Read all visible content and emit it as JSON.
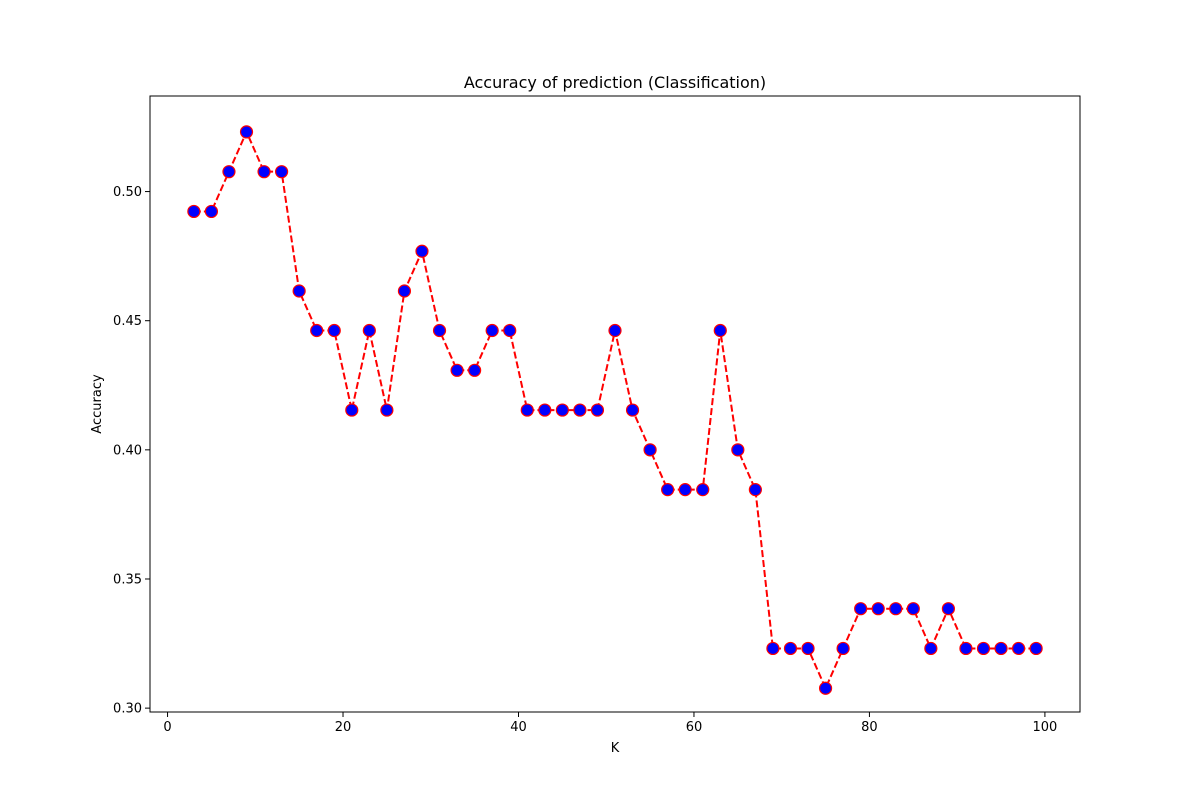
{
  "chart_data": {
    "type": "line",
    "title": "Accuracy of prediction (Classification)",
    "xlabel": "K",
    "ylabel": "Accuracy",
    "xlim": [
      -2,
      104
    ],
    "ylim": [
      0.2985,
      0.537
    ],
    "xticks": [
      0,
      20,
      40,
      60,
      80,
      100
    ],
    "yticks": [
      0.3,
      0.35,
      0.4,
      0.45,
      0.5
    ],
    "xtick_labels": [
      "0",
      "20",
      "40",
      "60",
      "80",
      "100"
    ],
    "ytick_labels": [
      "0.30",
      "0.35",
      "0.40",
      "0.45",
      "0.50"
    ],
    "grid": false,
    "line_color": "#ff0000",
    "line_style": "dashed",
    "marker_fill": "#0000ff",
    "marker_edge": "#ff0000",
    "series": [
      {
        "x": [
          3,
          5,
          7,
          9,
          11,
          13,
          15,
          17,
          19,
          21,
          23,
          25,
          27,
          29,
          31,
          33,
          35,
          37,
          39,
          41,
          43,
          45,
          47,
          49,
          51,
          53,
          55,
          57,
          59,
          61,
          63,
          65,
          67,
          69,
          71,
          73,
          75,
          77,
          79,
          81,
          83,
          85,
          87,
          89,
          91,
          93,
          95,
          97,
          99
        ],
        "values": [
          0.4923,
          0.4923,
          0.5077,
          0.5231,
          0.5077,
          0.5077,
          0.4615,
          0.4462,
          0.4462,
          0.4154,
          0.4462,
          0.4154,
          0.4615,
          0.4769,
          0.4462,
          0.4308,
          0.4308,
          0.4462,
          0.4462,
          0.4154,
          0.4154,
          0.4154,
          0.4154,
          0.4154,
          0.4462,
          0.4154,
          0.4,
          0.3846,
          0.3846,
          0.3846,
          0.4462,
          0.4,
          0.3846,
          0.3231,
          0.3231,
          0.3231,
          0.3077,
          0.3231,
          0.3385,
          0.3385,
          0.3385,
          0.3385,
          0.3231,
          0.3385,
          0.3231,
          0.3231,
          0.3231,
          0.3231,
          0.3231
        ]
      }
    ]
  }
}
